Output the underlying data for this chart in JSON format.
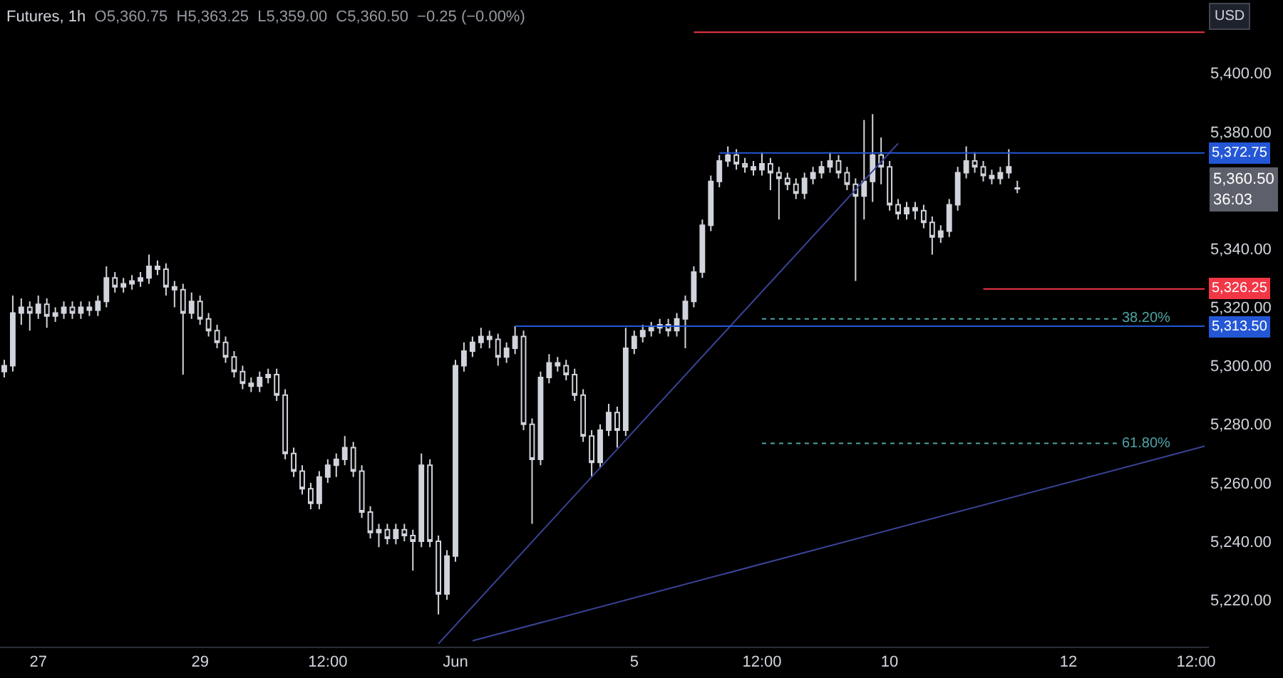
{
  "chart_data": {
    "type": "candlestick",
    "title": "Futures, 1h",
    "subtitle": "O5,360.75  H5,363.25  L5,359.00  C5,360.50  −0.25 (−0.00%)",
    "categories": [
      null,
      null,
      null,
      null,
      "27",
      null,
      null,
      null,
      null,
      null,
      null,
      null,
      null,
      null,
      null,
      null,
      null,
      null,
      null,
      null,
      null,
      null,
      null,
      "29",
      null,
      null,
      null,
      null,
      null,
      null,
      null,
      null,
      null,
      null,
      null,
      null,
      null,
      null,
      "12:00",
      null,
      null,
      null,
      null,
      null,
      null,
      null,
      null,
      null,
      null,
      null,
      null,
      null,
      null,
      "Jun",
      null,
      null,
      null,
      null,
      null,
      null,
      null,
      null,
      null,
      null,
      null,
      null,
      null,
      null,
      null,
      null,
      null,
      null,
      null,
      null,
      "5",
      null,
      null,
      null,
      null,
      null,
      null,
      null,
      null,
      null,
      null,
      null,
      null,
      null,
      null,
      "12:00",
      null,
      null,
      null,
      null,
      null,
      null,
      null,
      null,
      null,
      null,
      null,
      null,
      null,
      null,
      "10",
      null,
      null,
      null,
      null,
      null,
      null,
      null,
      null,
      null,
      null,
      null,
      null,
      null,
      null,
      null,
      null,
      null,
      null,
      null,
      null,
      "12",
      null,
      null,
      null,
      null,
      null,
      null,
      null,
      null,
      null,
      null,
      null,
      null,
      null,
      null,
      "12:00",
      null
    ],
    "ohlc": [
      [
        5298,
        5302,
        5296,
        5300
      ],
      [
        5300,
        5324,
        5298,
        5318
      ],
      [
        5318,
        5323,
        5314,
        5320
      ],
      [
        5320,
        5322,
        5312,
        5318
      ],
      [
        5318,
        5324,
        5316,
        5321
      ],
      [
        5321,
        5323,
        5313,
        5317
      ],
      [
        5317,
        5320,
        5315,
        5318
      ],
      [
        5318,
        5322,
        5316,
        5320
      ],
      [
        5320,
        5322,
        5316,
        5318
      ],
      [
        5318,
        5322,
        5316,
        5320
      ],
      [
        5320,
        5322,
        5317,
        5319
      ],
      [
        5319,
        5324,
        5317,
        5322
      ],
      [
        5322,
        5334,
        5320,
        5330
      ],
      [
        5330,
        5332,
        5325,
        5327
      ],
      [
        5327,
        5330,
        5325,
        5328
      ],
      [
        5328,
        5331,
        5326,
        5329
      ],
      [
        5329,
        5332,
        5327,
        5330
      ],
      [
        5330,
        5338,
        5328,
        5334
      ],
      [
        5334,
        5336,
        5331,
        5333
      ],
      [
        5333,
        5335,
        5324,
        5327
      ],
      [
        5327,
        5329,
        5320,
        5326
      ],
      [
        5326,
        5328,
        5297,
        5318
      ],
      [
        5318,
        5325,
        5316,
        5322
      ],
      [
        5322,
        5324,
        5314,
        5316
      ],
      [
        5316,
        5318,
        5310,
        5312
      ],
      [
        5312,
        5314,
        5306,
        5308
      ],
      [
        5308,
        5310,
        5301,
        5303
      ],
      [
        5303,
        5305,
        5296,
        5298
      ],
      [
        5298,
        5300,
        5292,
        5294
      ],
      [
        5294,
        5296,
        5291,
        5293
      ],
      [
        5293,
        5298,
        5291,
        5296
      ],
      [
        5296,
        5299,
        5294,
        5297
      ],
      [
        5297,
        5299,
        5288,
        5290
      ],
      [
        5290,
        5292,
        5268,
        5270
      ],
      [
        5270,
        5272,
        5262,
        5264
      ],
      [
        5264,
        5266,
        5256,
        5258
      ],
      [
        5258,
        5260,
        5251,
        5253
      ],
      [
        5253,
        5264,
        5251,
        5262
      ],
      [
        5262,
        5268,
        5260,
        5266
      ],
      [
        5266,
        5270,
        5262,
        5268
      ],
      [
        5268,
        5276,
        5266,
        5272
      ],
      [
        5272,
        5274,
        5262,
        5264
      ],
      [
        5264,
        5266,
        5248,
        5250
      ],
      [
        5250,
        5252,
        5241,
        5243
      ],
      [
        5243,
        5246,
        5238,
        5244
      ],
      [
        5244,
        5246,
        5239,
        5241
      ],
      [
        5241,
        5246,
        5239,
        5244
      ],
      [
        5244,
        5246,
        5240,
        5242
      ],
      [
        5242,
        5244,
        5230,
        5240
      ],
      [
        5240,
        5270,
        5238,
        5266
      ],
      [
        5266,
        5268,
        5238,
        5240
      ],
      [
        5240,
        5242,
        5215,
        5222
      ],
      [
        5222,
        5237,
        5220,
        5235
      ],
      [
        5235,
        5302,
        5233,
        5300
      ],
      [
        5300,
        5308,
        5298,
        5305
      ],
      [
        5305,
        5310,
        5303,
        5308
      ],
      [
        5308,
        5313,
        5306,
        5310
      ],
      [
        5310,
        5312,
        5306,
        5309
      ],
      [
        5309,
        5311,
        5300,
        5303
      ],
      [
        5303,
        5308,
        5301,
        5306
      ],
      [
        5306,
        5313.5,
        5304,
        5310
      ],
      [
        5310,
        5312,
        5278,
        5280
      ],
      [
        5280,
        5282,
        5246,
        5268
      ],
      [
        5268,
        5298,
        5266,
        5296
      ],
      [
        5296,
        5304,
        5294,
        5301
      ],
      [
        5301,
        5303,
        5298,
        5300
      ],
      [
        5300,
        5302,
        5295,
        5297
      ],
      [
        5297,
        5299,
        5288,
        5290
      ],
      [
        5290,
        5292,
        5274,
        5276
      ],
      [
        5276,
        5278,
        5262,
        5267
      ],
      [
        5267,
        5280,
        5265,
        5278
      ],
      [
        5278,
        5287,
        5276,
        5284
      ],
      [
        5284,
        5286,
        5272,
        5278
      ],
      [
        5278,
        5313,
        5276,
        5306
      ],
      [
        5306,
        5312,
        5304,
        5310
      ],
      [
        5310,
        5314,
        5308,
        5312
      ],
      [
        5312,
        5315,
        5310,
        5313
      ],
      [
        5313,
        5316,
        5311,
        5314
      ],
      [
        5314,
        5316,
        5310,
        5312
      ],
      [
        5312,
        5318,
        5310,
        5316
      ],
      [
        5316,
        5324,
        5306,
        5322
      ],
      [
        5322,
        5334,
        5320,
        5332
      ],
      [
        5332,
        5350,
        5330,
        5348
      ],
      [
        5348,
        5365,
        5346,
        5363
      ],
      [
        5363,
        5372,
        5361,
        5370
      ],
      [
        5370,
        5375,
        5368,
        5372
      ],
      [
        5372,
        5374,
        5367,
        5369
      ],
      [
        5369,
        5371,
        5366,
        5368
      ],
      [
        5368,
        5370,
        5365,
        5367
      ],
      [
        5367,
        5373,
        5365,
        5369
      ],
      [
        5369,
        5371,
        5360,
        5366
      ],
      [
        5366,
        5368,
        5350,
        5364
      ],
      [
        5364,
        5366,
        5360,
        5362
      ],
      [
        5362,
        5364,
        5357,
        5359
      ],
      [
        5359,
        5366,
        5357,
        5364
      ],
      [
        5364,
        5368,
        5362,
        5366
      ],
      [
        5366,
        5370,
        5364,
        5368
      ],
      [
        5368,
        5373,
        5366,
        5370
      ],
      [
        5370,
        5372,
        5364,
        5366
      ],
      [
        5366,
        5368,
        5360,
        5362
      ],
      [
        5362,
        5364,
        5329,
        5358
      ],
      [
        5358,
        5384,
        5350,
        5363
      ],
      [
        5363,
        5386,
        5356,
        5372
      ],
      [
        5372,
        5378,
        5362,
        5368
      ],
      [
        5368,
        5370,
        5353,
        5355
      ],
      [
        5355,
        5357,
        5350,
        5352
      ],
      [
        5352,
        5356,
        5350,
        5354
      ],
      [
        5354,
        5356,
        5350,
        5353
      ],
      [
        5353,
        5355,
        5347,
        5349
      ],
      [
        5349,
        5351,
        5338,
        5344
      ],
      [
        5344,
        5348,
        5342,
        5346
      ],
      [
        5346,
        5357,
        5344,
        5355
      ],
      [
        5355,
        5368,
        5353,
        5366
      ],
      [
        5366,
        5375,
        5364,
        5370
      ],
      [
        5370,
        5373,
        5366,
        5368
      ],
      [
        5368,
        5370,
        5363,
        5365
      ],
      [
        5365,
        5367,
        5362,
        5364
      ],
      [
        5364,
        5368,
        5362,
        5366
      ],
      [
        5366,
        5374,
        5364,
        5368
      ],
      [
        5360.75,
        5363.25,
        5359,
        5360.5
      ],
      null,
      null,
      null,
      null,
      null,
      null,
      null,
      null,
      null,
      null,
      null,
      null,
      null,
      null,
      null,
      null,
      null,
      null,
      null,
      null,
      null,
      null
    ],
    "series": [
      {
        "type": "line",
        "color": "#3a4496",
        "values": [
          null,
          null,
          null,
          null,
          null,
          null,
          null,
          null,
          null,
          null,
          null,
          null,
          null,
          null,
          null,
          null,
          null,
          null,
          null,
          null,
          null,
          null,
          null,
          null,
          null,
          null,
          null,
          null,
          null,
          null,
          null,
          null,
          null,
          null,
          null,
          null,
          null,
          null,
          null,
          null,
          null,
          null,
          null,
          null,
          null,
          null,
          null,
          null,
          null,
          null,
          null,
          5205,
          null,
          null,
          null,
          null,
          null,
          null,
          null,
          null,
          null,
          null,
          null,
          null,
          null,
          null,
          null,
          null,
          null,
          null,
          null,
          null,
          null,
          null,
          null,
          null,
          null,
          null,
          null,
          null,
          null,
          null,
          null,
          null,
          null,
          null,
          null,
          null,
          null,
          null,
          null,
          null,
          null,
          null,
          null,
          null,
          null,
          null,
          null,
          null,
          null,
          null,
          null,
          null,
          null,
          5376,
          null,
          null,
          null,
          null,
          null,
          null,
          null,
          null,
          null,
          null,
          null,
          null,
          null,
          null,
          null,
          null,
          null,
          null,
          null,
          null,
          null,
          null,
          null,
          null,
          null,
          null,
          null,
          null,
          null,
          null,
          null,
          null,
          null,
          null,
          null,
          null
        ]
      },
      {
        "type": "line",
        "color": "#3a4496",
        "values": [
          null,
          null,
          null,
          null,
          null,
          null,
          null,
          null,
          null,
          null,
          null,
          null,
          null,
          null,
          null,
          null,
          null,
          null,
          null,
          null,
          null,
          null,
          null,
          null,
          null,
          null,
          null,
          null,
          null,
          null,
          null,
          null,
          null,
          null,
          null,
          null,
          null,
          null,
          null,
          null,
          null,
          null,
          null,
          null,
          null,
          null,
          null,
          null,
          null,
          null,
          null,
          null,
          null,
          null,
          null,
          5206,
          null,
          null,
          null,
          null,
          null,
          null,
          null,
          null,
          null,
          null,
          null,
          null,
          null,
          null,
          null,
          null,
          null,
          null,
          null,
          null,
          null,
          null,
          null,
          null,
          null,
          null,
          null,
          null,
          null,
          null,
          null,
          null,
          null,
          null,
          null,
          null,
          null,
          null,
          null,
          null,
          null,
          null,
          null,
          null,
          null,
          null,
          null,
          null,
          null,
          null,
          null,
          null,
          null,
          null,
          null,
          null,
          null,
          null,
          null,
          null,
          null,
          null,
          null,
          null,
          null,
          null,
          null,
          null,
          null,
          null,
          null,
          null,
          null,
          null,
          null,
          null,
          null,
          null,
          null,
          null,
          null,
          null,
          null,
          null,
          null,
          5272.5
        ]
      },
      {
        "type": "line",
        "name": "5,372.75",
        "color": "#2457d6",
        "values": [
          null,
          null,
          null,
          null,
          null,
          null,
          null,
          null,
          null,
          null,
          null,
          null,
          null,
          null,
          null,
          null,
          null,
          null,
          null,
          null,
          null,
          null,
          null,
          null,
          null,
          null,
          null,
          null,
          null,
          null,
          null,
          null,
          null,
          null,
          null,
          null,
          null,
          null,
          null,
          null,
          null,
          null,
          null,
          null,
          null,
          null,
          null,
          null,
          null,
          null,
          null,
          null,
          null,
          null,
          null,
          null,
          null,
          null,
          null,
          null,
          null,
          null,
          null,
          null,
          null,
          null,
          null,
          null,
          null,
          null,
          null,
          null,
          null,
          null,
          null,
          null,
          null,
          null,
          null,
          null,
          null,
          null,
          null,
          null,
          5372.75,
          null,
          null,
          null,
          null,
          null,
          null,
          null,
          null,
          null,
          null,
          null,
          null,
          null,
          null,
          null,
          null,
          null,
          null,
          null,
          null,
          null,
          null,
          null,
          null,
          null,
          null,
          null,
          null,
          null,
          null,
          null,
          null,
          null,
          null,
          null,
          null,
          null,
          null,
          null,
          null,
          null,
          null,
          null,
          null,
          null,
          null,
          null,
          null,
          null,
          null,
          null,
          null,
          null,
          null,
          null,
          null,
          5372.75
        ]
      },
      {
        "type": "line",
        "name": "5,313.50",
        "color": "#2457d6",
        "values": [
          null,
          null,
          null,
          null,
          null,
          null,
          null,
          null,
          null,
          null,
          null,
          null,
          null,
          null,
          null,
          null,
          null,
          null,
          null,
          null,
          null,
          null,
          null,
          null,
          null,
          null,
          null,
          null,
          null,
          null,
          null,
          null,
          null,
          null,
          null,
          null,
          null,
          null,
          null,
          null,
          null,
          null,
          null,
          null,
          null,
          null,
          null,
          null,
          null,
          null,
          null,
          null,
          null,
          null,
          null,
          null,
          null,
          null,
          null,
          null,
          5313.5,
          null,
          null,
          null,
          null,
          null,
          null,
          null,
          null,
          null,
          null,
          null,
          null,
          null,
          null,
          null,
          null,
          null,
          null,
          null,
          null,
          null,
          null,
          null,
          null,
          null,
          null,
          null,
          null,
          null,
          null,
          null,
          null,
          null,
          null,
          null,
          null,
          null,
          null,
          null,
          null,
          null,
          null,
          null,
          null,
          null,
          null,
          null,
          null,
          null,
          null,
          null,
          null,
          null,
          null,
          null,
          null,
          null,
          null,
          null,
          null,
          null,
          null,
          null,
          null,
          null,
          null,
          null,
          null,
          null,
          null,
          null,
          null,
          null,
          null,
          null,
          null,
          null,
          null,
          null,
          null,
          5313.5
        ]
      },
      {
        "type": "line",
        "name": "5,326.25",
        "color": "#f23645",
        "values": [
          null,
          null,
          null,
          null,
          null,
          null,
          null,
          null,
          null,
          null,
          null,
          null,
          null,
          null,
          null,
          null,
          null,
          null,
          null,
          null,
          null,
          null,
          null,
          null,
          null,
          null,
          null,
          null,
          null,
          null,
          null,
          null,
          null,
          null,
          null,
          null,
          null,
          null,
          null,
          null,
          null,
          null,
          null,
          null,
          null,
          null,
          null,
          null,
          null,
          null,
          null,
          null,
          null,
          null,
          null,
          null,
          null,
          null,
          null,
          null,
          null,
          null,
          null,
          null,
          null,
          null,
          null,
          null,
          null,
          null,
          null,
          null,
          null,
          null,
          null,
          null,
          null,
          null,
          null,
          null,
          null,
          null,
          null,
          null,
          null,
          null,
          null,
          null,
          null,
          null,
          null,
          null,
          null,
          null,
          null,
          null,
          null,
          null,
          null,
          null,
          null,
          null,
          null,
          null,
          null,
          null,
          null,
          null,
          null,
          null,
          null,
          null,
          null,
          null,
          null,
          5326.25,
          null,
          null,
          null,
          null,
          null,
          null,
          null,
          null,
          null,
          null,
          null,
          null,
          null,
          null,
          null,
          null,
          null,
          null,
          null,
          null,
          null,
          null,
          null,
          null,
          null,
          5326.25
        ]
      },
      {
        "type": "line",
        "color": "#f23645",
        "values": [
          null,
          null,
          null,
          null,
          null,
          null,
          null,
          null,
          null,
          null,
          null,
          null,
          null,
          null,
          null,
          null,
          null,
          null,
          null,
          null,
          null,
          null,
          null,
          null,
          null,
          null,
          null,
          null,
          null,
          null,
          null,
          null,
          null,
          null,
          null,
          null,
          null,
          null,
          null,
          null,
          null,
          null,
          null,
          null,
          null,
          null,
          null,
          null,
          null,
          null,
          null,
          null,
          null,
          null,
          null,
          null,
          null,
          null,
          null,
          null,
          null,
          null,
          null,
          null,
          null,
          null,
          null,
          null,
          null,
          null,
          null,
          null,
          null,
          null,
          null,
          null,
          null,
          null,
          null,
          null,
          null,
          5414,
          null,
          null,
          null,
          null,
          null,
          null,
          null,
          null,
          null,
          null,
          null,
          null,
          null,
          null,
          null,
          null,
          null,
          null,
          null,
          null,
          null,
          null,
          null,
          null,
          null,
          null,
          null,
          null,
          null,
          null,
          null,
          null,
          null,
          null,
          null,
          null,
          null,
          null,
          null,
          null,
          null,
          null,
          null,
          null,
          null,
          null,
          null,
          null,
          null,
          null,
          null,
          null,
          null,
          null,
          null,
          null,
          null,
          null,
          null,
          5414
        ]
      },
      {
        "type": "line",
        "name": "38.20%",
        "color": "#4fa3a5",
        "line_style": "dotted",
        "values": [
          null,
          null,
          null,
          null,
          null,
          null,
          null,
          null,
          null,
          null,
          null,
          null,
          null,
          null,
          null,
          null,
          null,
          null,
          null,
          null,
          null,
          null,
          null,
          null,
          null,
          null,
          null,
          null,
          null,
          null,
          null,
          null,
          null,
          null,
          null,
          null,
          null,
          null,
          null,
          null,
          null,
          null,
          null,
          null,
          null,
          null,
          null,
          null,
          null,
          null,
          null,
          null,
          null,
          null,
          null,
          null,
          null,
          null,
          null,
          null,
          null,
          null,
          null,
          null,
          null,
          null,
          null,
          null,
          null,
          null,
          null,
          null,
          null,
          null,
          null,
          null,
          null,
          null,
          null,
          null,
          null,
          null,
          null,
          null,
          null,
          null,
          null,
          null,
          null,
          5316,
          null,
          null,
          null,
          null,
          null,
          null,
          null,
          null,
          null,
          null,
          null,
          null,
          null,
          null,
          null,
          null,
          null,
          null,
          null,
          null,
          null,
          null,
          null,
          null,
          null,
          null,
          null,
          null,
          null,
          null,
          null,
          null,
          null,
          null,
          null,
          null,
          null,
          null,
          null,
          null,
          null,
          5316,
          null,
          null,
          null,
          null,
          null,
          null,
          null,
          null,
          null,
          null
        ]
      },
      {
        "type": "line",
        "name": "61.80%",
        "color": "#4fa3a5",
        "line_style": "dotted",
        "values": [
          null,
          null,
          null,
          null,
          null,
          null,
          null,
          null,
          null,
          null,
          null,
          null,
          null,
          null,
          null,
          null,
          null,
          null,
          null,
          null,
          null,
          null,
          null,
          null,
          null,
          null,
          null,
          null,
          null,
          null,
          null,
          null,
          null,
          null,
          null,
          null,
          null,
          null,
          null,
          null,
          null,
          null,
          null,
          null,
          null,
          null,
          null,
          null,
          null,
          null,
          null,
          null,
          null,
          null,
          null,
          null,
          null,
          null,
          null,
          null,
          null,
          null,
          null,
          null,
          null,
          null,
          null,
          null,
          null,
          null,
          null,
          null,
          null,
          null,
          null,
          null,
          null,
          null,
          null,
          null,
          null,
          null,
          null,
          null,
          null,
          null,
          null,
          null,
          null,
          5273.5,
          null,
          null,
          null,
          null,
          null,
          null,
          null,
          null,
          null,
          null,
          null,
          null,
          null,
          null,
          null,
          null,
          null,
          null,
          null,
          null,
          null,
          null,
          null,
          null,
          null,
          null,
          null,
          null,
          null,
          null,
          null,
          null,
          null,
          null,
          null,
          null,
          null,
          null,
          null,
          null,
          null,
          5273.5,
          null,
          null,
          null,
          null,
          null,
          null,
          null,
          null,
          null,
          null
        ]
      }
    ],
    "ylim": [
      5204,
      5425
    ],
    "yticks": [
      {
        "value": 5220,
        "label": "5,220.00"
      },
      {
        "value": 5240,
        "label": "5,240.00"
      },
      {
        "value": 5260,
        "label": "5,260.00"
      },
      {
        "value": 5280,
        "label": "5,280.00"
      },
      {
        "value": 5300,
        "label": "5,300.00"
      },
      {
        "value": 5320,
        "label": "5,320.00"
      },
      {
        "value": 5340,
        "label": "5,340.00"
      },
      {
        "value": 5380,
        "label": "5,380.00"
      },
      {
        "value": 5400,
        "label": "5,400.00"
      }
    ],
    "annotations": [
      "USD",
      "5,360.50\n36:03"
    ],
    "grid": false,
    "legend": "right"
  }
}
